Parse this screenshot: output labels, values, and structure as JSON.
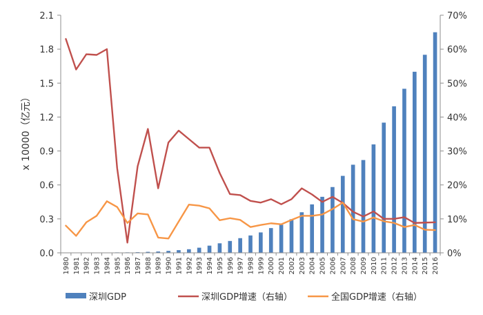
{
  "chart_data": {
    "type": "bar+line",
    "title": "",
    "categories": [
      "1980",
      "1981",
      "1982",
      "1983",
      "1984",
      "1985",
      "1986",
      "1987",
      "1988",
      "1989",
      "1990",
      "1991",
      "1992",
      "1993",
      "1994",
      "1995",
      "1996",
      "1997",
      "1998",
      "1999",
      "2000",
      "2001",
      "2002",
      "2003",
      "2004",
      "2005",
      "2006",
      "2007",
      "2008",
      "2009",
      "2010",
      "2011",
      "2012",
      "2013",
      "2014",
      "2015",
      "2016"
    ],
    "ylabel_left": "x 10000（亿元）",
    "ylim_left": [
      0,
      2.1
    ],
    "yticks_left": [
      "0.0",
      "0.3",
      "0.6",
      "0.9",
      "1.2",
      "1.5",
      "1.8",
      "2.1"
    ],
    "ylim_right": [
      0,
      0.7
    ],
    "yticks_right": [
      "0%",
      "10%",
      "20%",
      "30%",
      "40%",
      "50%",
      "60%",
      "70%"
    ],
    "legend_position": "bottom",
    "gridlines": false,
    "series": [
      {
        "name": "深圳GDP",
        "type": "bar",
        "axis": "left",
        "color": "#4F81BD",
        "values": [
          0.0003,
          0.0005,
          0.0008,
          0.0013,
          0.0023,
          0.0039,
          0.0042,
          0.0056,
          0.0087,
          0.0116,
          0.0172,
          0.0237,
          0.0317,
          0.0453,
          0.0634,
          0.0842,
          0.1048,
          0.1297,
          0.1535,
          0.1804,
          0.2187,
          0.2482,
          0.297,
          0.3586,
          0.4282,
          0.4951,
          0.5814,
          0.6802,
          0.7787,
          0.8201,
          0.9582,
          1.1506,
          1.295,
          1.45,
          1.6002,
          1.7503,
          1.9493
        ]
      },
      {
        "name": "深圳GDP增速（右轴）",
        "type": "line",
        "axis": "right",
        "color": "#C0504D",
        "values": [
          0.63,
          0.54,
          0.585,
          0.583,
          0.6,
          0.25,
          0.03,
          0.255,
          0.365,
          0.19,
          0.325,
          0.36,
          0.335,
          0.31,
          0.31,
          0.235,
          0.173,
          0.17,
          0.153,
          0.148,
          0.158,
          0.143,
          0.158,
          0.19,
          0.172,
          0.15,
          0.165,
          0.147,
          0.121,
          0.107,
          0.122,
          0.1,
          0.1,
          0.105,
          0.088,
          0.089,
          0.09
        ]
      },
      {
        "name": "全国GDP增速（右轴）",
        "type": "line",
        "axis": "right",
        "color": "#F79646",
        "values": [
          0.08,
          0.05,
          0.09,
          0.109,
          0.152,
          0.135,
          0.088,
          0.116,
          0.113,
          0.045,
          0.042,
          0.092,
          0.142,
          0.139,
          0.131,
          0.096,
          0.102,
          0.097,
          0.076,
          0.082,
          0.087,
          0.084,
          0.097,
          0.109,
          0.109,
          0.113,
          0.129,
          0.148,
          0.099,
          0.092,
          0.104,
          0.093,
          0.088,
          0.076,
          0.082,
          0.068,
          0.067
        ]
      }
    ]
  }
}
